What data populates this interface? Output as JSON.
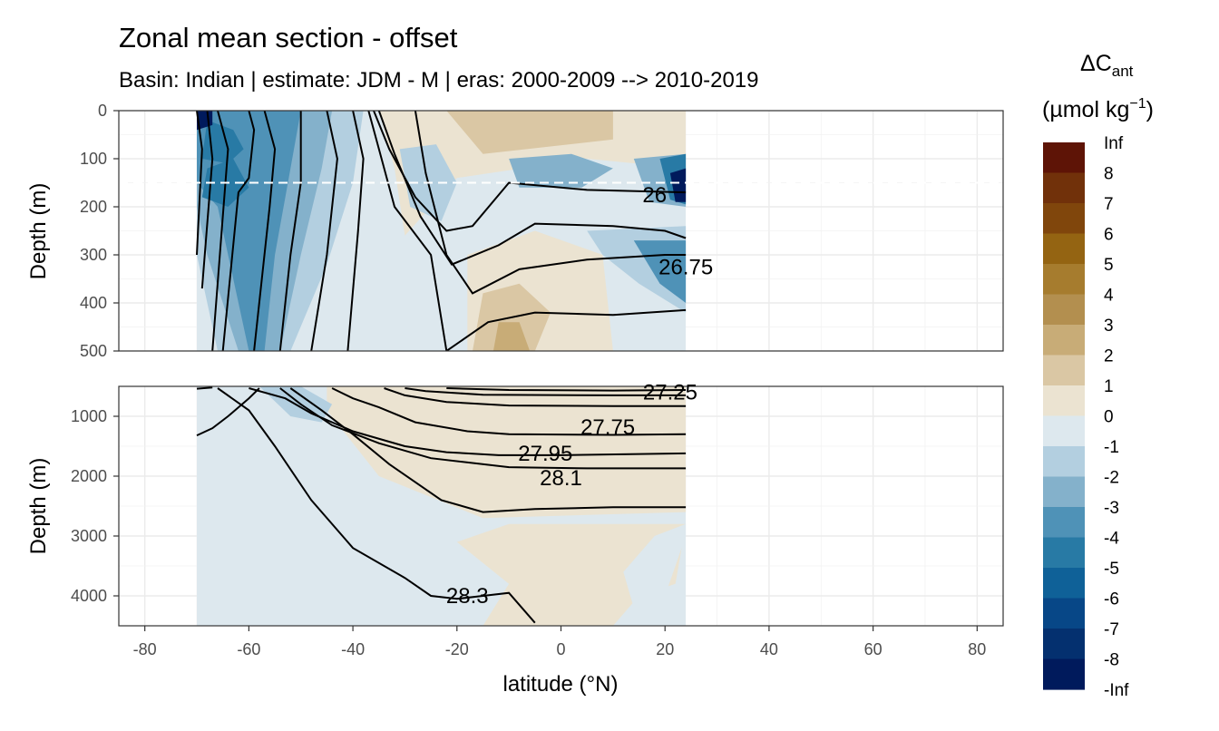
{
  "chart_data": {
    "type": "heatmap",
    "title": "Zonal mean section - offset",
    "subtitle": "Basin: Indian | estimate: JDM - M | eras: 2000-2009 --> 2010-2019",
    "xlabel": "latitude (°N)",
    "ylabel": "Depth (m)",
    "xlim": [
      -85,
      85
    ],
    "x_ticks": [
      "-80",
      "-60",
      "-40",
      "-20",
      "0",
      "20",
      "40",
      "60",
      "80"
    ],
    "data_extent_lat": [
      -70,
      24
    ],
    "panels": [
      {
        "name": "upper",
        "ylim": [
          0,
          500
        ],
        "y_ticks": [
          "0",
          "100",
          "200",
          "300",
          "400",
          "500"
        ],
        "reference_line_depth": 150
      },
      {
        "name": "lower",
        "ylim": [
          500,
          4500
        ],
        "y_ticks": [
          "1000",
          "2000",
          "3000",
          "4000"
        ]
      }
    ],
    "legend": {
      "title_main": "ΔC",
      "title_sub": "ant",
      "units": "(µmol kg",
      "units_sup": "−1",
      "units_close": ")",
      "labels": [
        "Inf",
        "8",
        "7",
        "6",
        "5",
        "4",
        "3",
        "2",
        "1",
        "0",
        "-1",
        "-2",
        "-3",
        "-4",
        "-5",
        "-6",
        "-7",
        "-8",
        "-Inf"
      ],
      "colors": [
        "#5e1406",
        "#71310a",
        "#80460c",
        "#946412",
        "#a67c2e",
        "#b38f4f",
        "#c8ac77",
        "#dac7a4",
        "#ebe3d1",
        "#dde8ee",
        "#b3cfe0",
        "#84b1cb",
        "#4f92b7",
        "#287aa5",
        "#0f6198",
        "#074787",
        "#04306f",
        "#001a5c"
      ]
    },
    "contour_labels": [
      {
        "text": "26",
        "lat": 18,
        "depth": 175
      },
      {
        "text": "26.75",
        "lat": 24,
        "depth": 325
      },
      {
        "text": "27.25",
        "lat": 21,
        "depth": 600
      },
      {
        "text": "27.75",
        "lat": 9,
        "depth": 1180
      },
      {
        "text": "27.95",
        "lat": -3,
        "depth": 1620
      },
      {
        "text": "28.1",
        "lat": 0,
        "depth": 2030
      },
      {
        "text": "28.3",
        "lat": -18,
        "depth": 4000
      }
    ],
    "contours_upper": [
      [
        [
          -70,
          0
        ],
        [
          -69,
          80
        ],
        [
          -70,
          300
        ]
      ],
      [
        [
          -68,
          0
        ],
        [
          -67,
          100
        ],
        [
          -69,
          370
        ]
      ],
      [
        [
          -66,
          0
        ],
        [
          -64,
          80
        ],
        [
          -67,
          500
        ]
      ],
      [
        [
          -60,
          0
        ],
        [
          -59,
          40
        ],
        [
          -60,
          140
        ],
        [
          -62,
          170
        ],
        [
          -65,
          500
        ]
      ],
      [
        [
          -57,
          0
        ],
        [
          -55,
          80
        ],
        [
          -56,
          200
        ],
        [
          -59,
          500
        ]
      ],
      [
        [
          -50,
          0
        ],
        [
          -50,
          150
        ],
        [
          -52,
          300
        ],
        [
          -54,
          500
        ]
      ],
      [
        [
          -45,
          0
        ],
        [
          -43,
          100
        ],
        [
          -45,
          300
        ],
        [
          -48,
          500
        ]
      ],
      [
        [
          -40,
          0
        ],
        [
          -38,
          100
        ],
        [
          -39,
          250
        ],
        [
          -41,
          500
        ]
      ],
      [
        [
          -37,
          0
        ],
        [
          -35,
          80
        ],
        [
          -32,
          200
        ],
        [
          -25,
          300
        ],
        [
          -22,
          500
        ]
      ],
      [
        [
          -36,
          0
        ],
        [
          -33,
          80
        ],
        [
          -28,
          180
        ],
        [
          -22,
          250
        ],
        [
          -17,
          240
        ],
        [
          -10,
          150
        ],
        [
          5,
          165
        ],
        [
          24,
          170
        ]
      ],
      [
        [
          -35,
          0
        ],
        [
          -32,
          90
        ],
        [
          -27,
          220
        ],
        [
          -21,
          320
        ],
        [
          -12,
          280
        ],
        [
          -5,
          235
        ],
        [
          10,
          240
        ],
        [
          20,
          250
        ],
        [
          24,
          265
        ]
      ],
      [
        [
          -28,
          0
        ],
        [
          -26,
          130
        ],
        [
          -22,
          300
        ],
        [
          -17,
          380
        ],
        [
          -8,
          330
        ],
        [
          5,
          310
        ],
        [
          20,
          300
        ],
        [
          24,
          300
        ]
      ],
      [
        [
          -22,
          500
        ],
        [
          -14,
          440
        ],
        [
          -5,
          420
        ],
        [
          10,
          425
        ],
        [
          24,
          415
        ]
      ]
    ],
    "contours_lower": [
      [
        [
          -70,
          540
        ],
        [
          -67,
          520
        ]
      ],
      [
        [
          -70,
          1320
        ],
        [
          -67,
          1200
        ],
        [
          -64,
          1000
        ],
        [
          -60,
          700
        ],
        [
          -58,
          530
        ]
      ],
      [
        [
          -60,
          530
        ],
        [
          -53,
          700
        ],
        [
          -48,
          950
        ],
        [
          -40,
          1250
        ],
        [
          -30,
          1500
        ],
        [
          -22,
          1600
        ],
        [
          -12,
          1650
        ],
        [
          0,
          1650
        ],
        [
          24,
          1620
        ]
      ],
      [
        [
          -44,
          530
        ],
        [
          -40,
          700
        ],
        [
          -35,
          850
        ],
        [
          -28,
          1100
        ],
        [
          -18,
          1250
        ],
        [
          -10,
          1300
        ],
        [
          10,
          1310
        ],
        [
          24,
          1300
        ]
      ],
      [
        [
          -54,
          530
        ],
        [
          -50,
          800
        ],
        [
          -44,
          1150
        ],
        [
          -35,
          1450
        ],
        [
          -25,
          1700
        ],
        [
          -10,
          1850
        ],
        [
          5,
          1870
        ],
        [
          24,
          1870
        ]
      ],
      [
        [
          -52,
          530
        ],
        [
          -46,
          900
        ],
        [
          -40,
          1300
        ],
        [
          -33,
          1800
        ],
        [
          -23,
          2400
        ],
        [
          -15,
          2600
        ],
        [
          -5,
          2550
        ],
        [
          10,
          2520
        ],
        [
          24,
          2520
        ]
      ],
      [
        [
          -66,
          530
        ],
        [
          -60,
          900
        ],
        [
          -55,
          1500
        ],
        [
          -48,
          2400
        ],
        [
          -40,
          3200
        ],
        [
          -30,
          3700
        ],
        [
          -25,
          4000
        ],
        [
          -20,
          4050
        ],
        [
          -15,
          4000
        ],
        [
          -10,
          3950
        ],
        [
          -5,
          4450
        ]
      ],
      [
        [
          -34,
          530
        ],
        [
          -30,
          650
        ],
        [
          -22,
          760
        ],
        [
          -10,
          820
        ],
        [
          10,
          830
        ],
        [
          24,
          830
        ]
      ],
      [
        [
          -30,
          530
        ],
        [
          -26,
          580
        ],
        [
          -15,
          640
        ],
        [
          10,
          650
        ],
        [
          24,
          650
        ]
      ],
      [
        [
          -22,
          530
        ],
        [
          -10,
          560
        ],
        [
          10,
          570
        ],
        [
          24,
          560
        ]
      ]
    ]
  }
}
